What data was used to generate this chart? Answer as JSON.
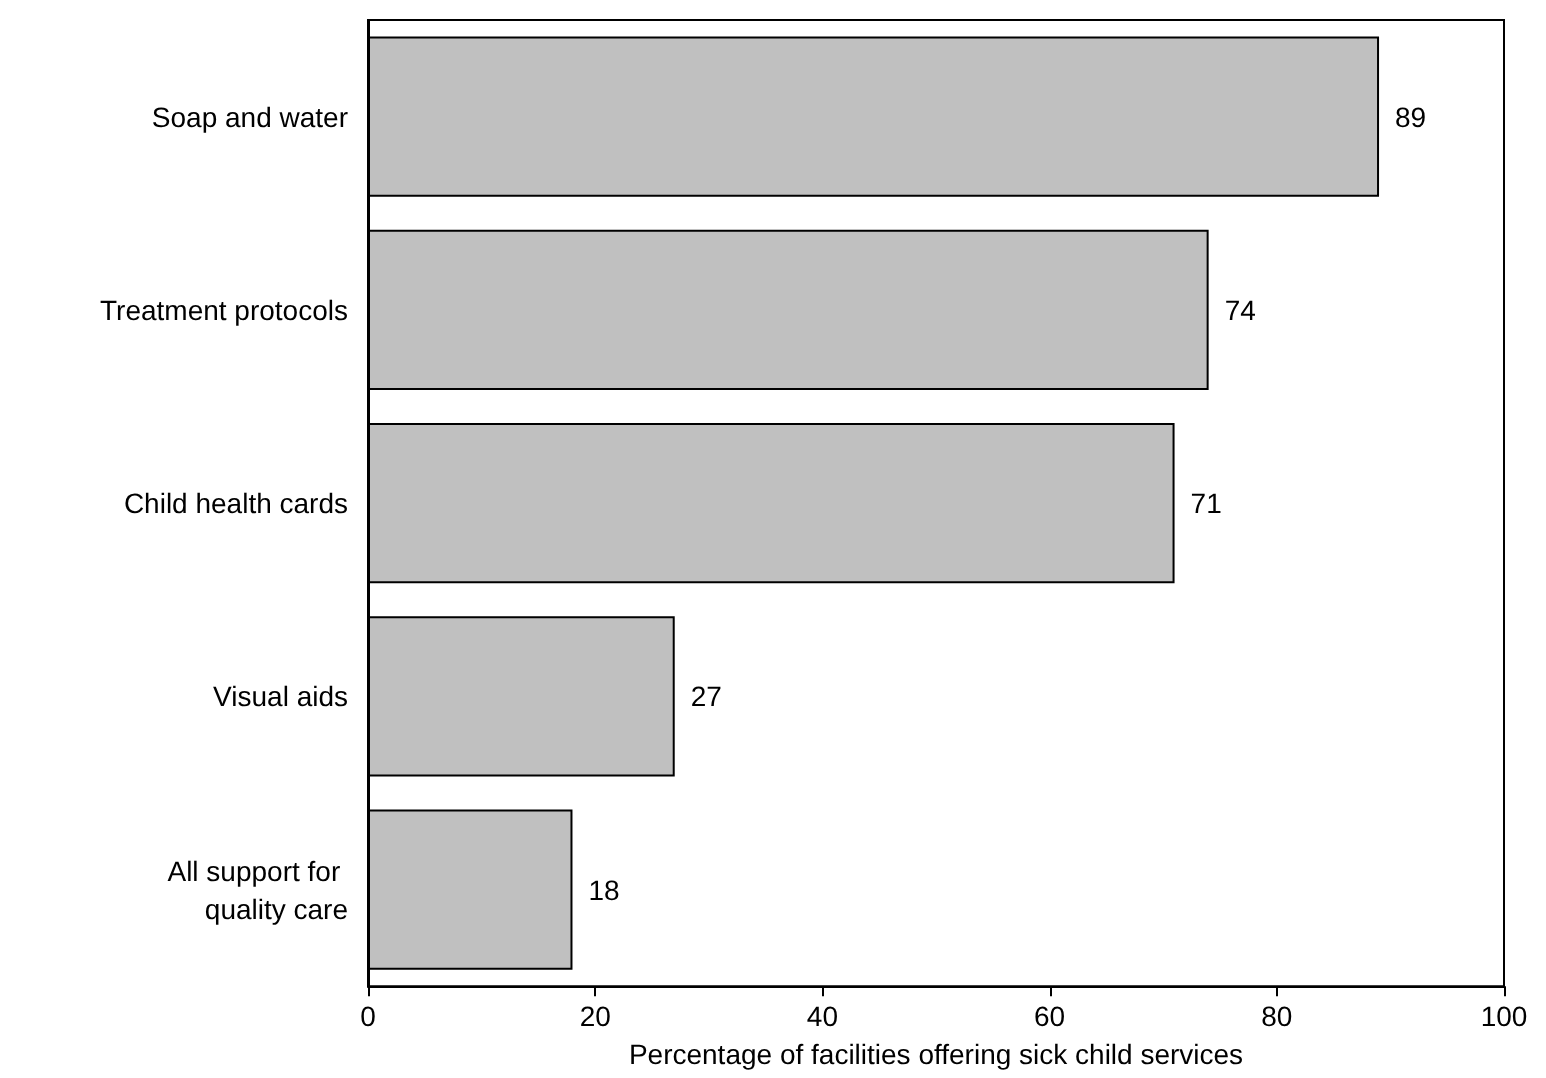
{
  "chart_data": {
    "type": "bar",
    "orientation": "horizontal",
    "xlabel": "Percentage of facilities offering sick child services",
    "categories": [
      "Soap and water",
      "Treatment protocols",
      "Child health cards",
      "Visual aids",
      "All support for quality care"
    ],
    "values": [
      89,
      74,
      71,
      27,
      18
    ],
    "color": "#c0c0c0",
    "xlim": [
      0,
      100
    ],
    "xticks": [
      0,
      20,
      40,
      60,
      80,
      100
    ],
    "data_labels": true,
    "grid": false
  }
}
